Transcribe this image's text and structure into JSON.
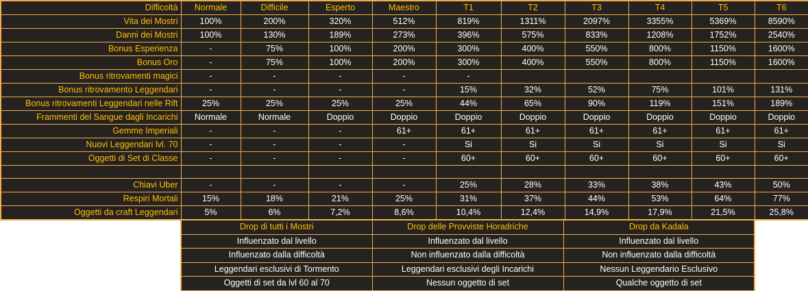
{
  "colors": {
    "page_background": "#FFFFFF",
    "cell_background": "#262220",
    "border": "#EFAF4D",
    "label_text": "#FFC000",
    "value_text": "#FFFFFF"
  },
  "chart_data": [
    {
      "type": "table",
      "name": "difficulty-table",
      "header": [
        "Difficoltà",
        "Normale",
        "Difficile",
        "Esperto",
        "Maestro",
        "T1",
        "T2",
        "T3",
        "T4",
        "T5",
        "T6"
      ],
      "rows": [
        {
          "label": "Vita dei Mostri",
          "cells": [
            "100%",
            "200%",
            "320%",
            "512%",
            "819%",
            "1311%",
            "2097%",
            "3355%",
            "5369%",
            "8590%"
          ]
        },
        {
          "label": "Danni dei Mostri",
          "cells": [
            "100%",
            "130%",
            "189%",
            "273%",
            "396%",
            "575%",
            "833%",
            "1208%",
            "1752%",
            "2540%"
          ]
        },
        {
          "label": "Bonus Esperienza",
          "cells": [
            "-",
            "75%",
            "100%",
            "200%",
            "300%",
            "400%",
            "550%",
            "800%",
            "1150%",
            "1600%"
          ]
        },
        {
          "label": "Bonus Oro",
          "cells": [
            "-",
            "75%",
            "100%",
            "200%",
            "300%",
            "400%",
            "550%",
            "800%",
            "1150%",
            "1600%"
          ]
        },
        {
          "label": "Bonus ritrovamenti magici",
          "cells": [
            "-",
            "-",
            "-",
            "-",
            "-",
            "",
            "",
            "",
            "",
            ""
          ]
        },
        {
          "label": "Bonus ritrovamento Leggendari",
          "cells": [
            "-",
            "-",
            "-",
            "-",
            "15%",
            "32%",
            "52%",
            "75%",
            "101%",
            "131%"
          ]
        },
        {
          "label": "Bonus ritrovamenti Leggendari nelle Rift",
          "cells": [
            "25%",
            "25%",
            "25%",
            "25%",
            "44%",
            "65%",
            "90%",
            "119%",
            "151%",
            "189%"
          ]
        },
        {
          "label": "Frammenti del Sangue dagli Incarichi",
          "cells": [
            "Normale",
            "Normale",
            "Doppio",
            "Doppio",
            "Doppio",
            "Doppio",
            "Doppio",
            "Doppio",
            "Doppio",
            "Doppio"
          ]
        },
        {
          "label": "Gemme Imperiali",
          "cells": [
            "-",
            "-",
            "-",
            "61+",
            "61+",
            "61+",
            "61+",
            "61+",
            "61+",
            "61+"
          ]
        },
        {
          "label": "Nuovi Leggendari lvl. 70",
          "cells": [
            "-",
            "-",
            "-",
            "-",
            "Si",
            "Si",
            "Si",
            "Si",
            "Si",
            "Si"
          ]
        },
        {
          "label": "Oggetti di Set di Classe",
          "cells": [
            "-",
            "-",
            "-",
            "-",
            "60+",
            "60+",
            "60+",
            "60+",
            "60+",
            "60+"
          ]
        },
        {
          "label": "",
          "cells": [
            "",
            "",
            "",
            "",
            "",
            "",
            "",
            "",
            "",
            ""
          ]
        },
        {
          "label": "Chiavi Uber",
          "cells": [
            "-",
            "-",
            "-",
            "-",
            "25%",
            "28%",
            "33%",
            "38%",
            "43%",
            "50%"
          ]
        },
        {
          "label": "Respiri Mortali",
          "cells": [
            "15%",
            "18%",
            "21%",
            "25%",
            "31%",
            "37%",
            "44%",
            "53%",
            "64%",
            "77%"
          ]
        },
        {
          "label": "Oggetti da craft Leggendari",
          "cells": [
            "5%",
            "6%",
            "7,2%",
            "8,6%",
            "10,4%",
            "12,4%",
            "14,9%",
            "17,9%",
            "21,5%",
            "25,8%"
          ]
        }
      ]
    },
    {
      "type": "table",
      "name": "drop-info-table",
      "columns": [
        {
          "title": "Drop di tutti i Mostri",
          "rows": [
            "Influenzato dal livello",
            "Influenzato dalla difficoltà",
            "Leggendari esclusivi di Tormento",
            "Oggetti di set da lvl 60 al 70"
          ]
        },
        {
          "title": "Drop delle Provviste Horadriche",
          "rows": [
            "Influenzato dal livello",
            "Non influenzato dalla difficoltà",
            "Leggendari esclusivi degli Incarichi",
            "Nessun oggetto di set"
          ]
        },
        {
          "title": "Drop da Kadala",
          "rows": [
            "Influenzato dal livello",
            "Non influenzato dalla difficoltà",
            "Nessun Leggendario Esclusivo",
            "Qualche oggetto di set"
          ]
        }
      ]
    }
  ]
}
